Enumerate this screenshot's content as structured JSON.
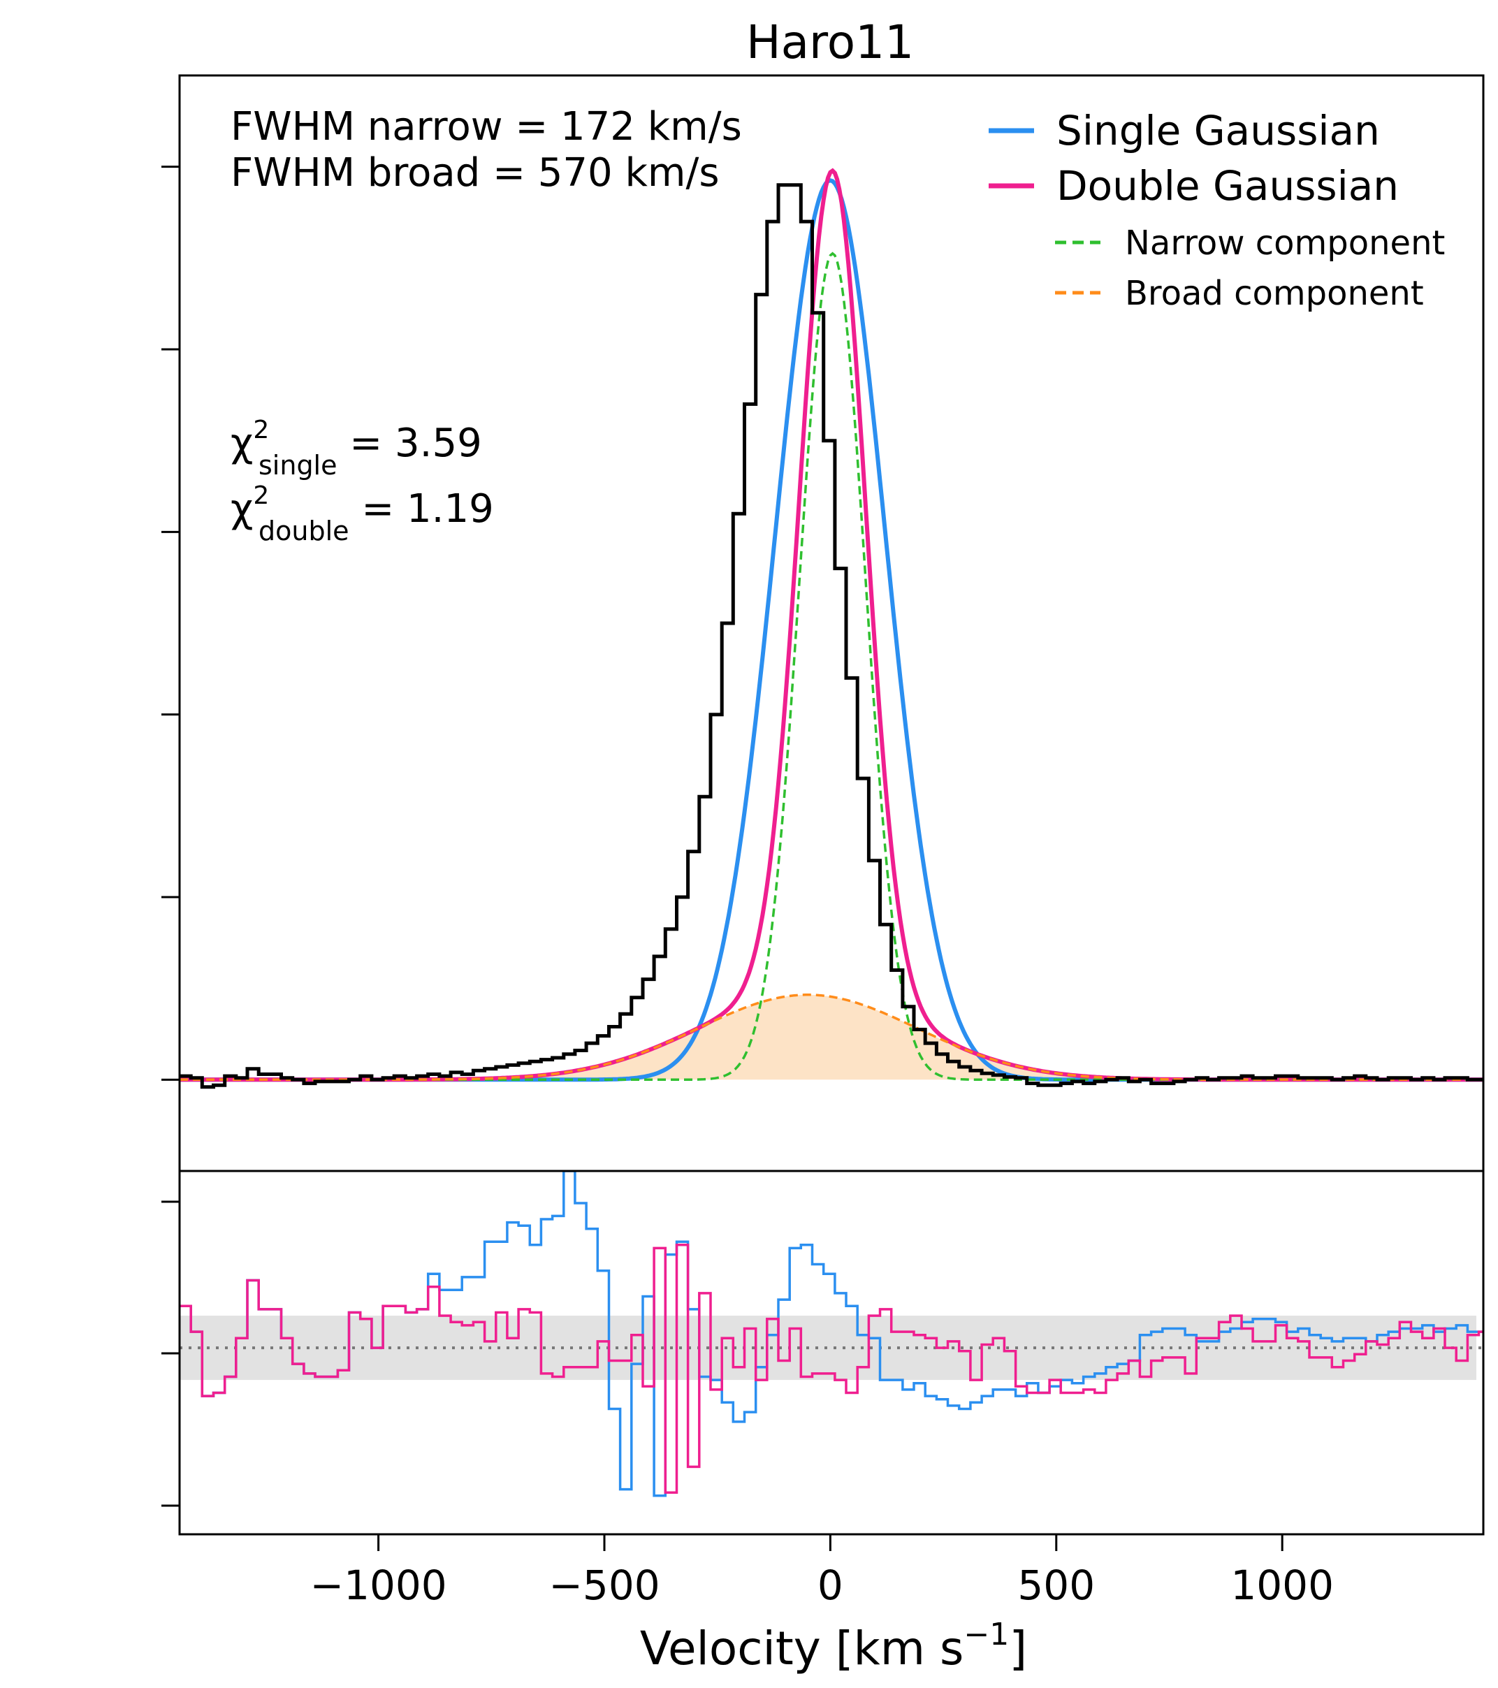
{
  "chart_data": {
    "type": "line",
    "title": "Haro11",
    "xlabel": "Velocity [km s",
    "xlabel_sup": "−1",
    "xlabel_close": "]",
    "xlim": [
      -1440,
      1445
    ],
    "xticks": [
      -1000,
      -500,
      0,
      500,
      1000
    ],
    "xtick_labels": [
      "−1000",
      "−500",
      "0",
      "500",
      "1000"
    ],
    "annotations": {
      "fwhm_narrow": "FWHM narrow = 172 km/s",
      "fwhm_broad": "FWHM broad = 570 km/s",
      "chi_symbol": "χ",
      "chi_sup": "2",
      "chi_single_sub": "single",
      "chi_single_value": " = 3.59",
      "chi_double_sub": "double",
      "chi_double_value": " = 1.19"
    },
    "legend": {
      "single": "Single Gaussian",
      "double": "Double Gaussian",
      "narrow": "Narrow component",
      "broad": "Broad component"
    },
    "colors": {
      "single": "#2b8ff0",
      "double": "#ef1f8f",
      "narrow": "#2fbf2f",
      "broad": "#ff8c1a",
      "broad_fill": "#fde3c6",
      "data": "#000000",
      "band": "#e2e2e2",
      "zero_line": "#777777"
    },
    "top_panel": {
      "ylim": [
        -0.1,
        1.1
      ],
      "data_step": {
        "x": [
          -1440,
          -1415,
          -1390,
          -1365,
          -1340,
          -1315,
          -1290,
          -1265,
          -1240,
          -1215,
          -1190,
          -1165,
          -1140,
          -1115,
          -1090,
          -1065,
          -1040,
          -1015,
          -990,
          -965,
          -940,
          -915,
          -890,
          -865,
          -840,
          -815,
          -790,
          -765,
          -740,
          -715,
          -690,
          -665,
          -640,
          -615,
          -590,
          -565,
          -540,
          -515,
          -490,
          -465,
          -440,
          -415,
          -390,
          -365,
          -340,
          -315,
          -290,
          -265,
          -240,
          -215,
          -190,
          -165,
          -140,
          -115,
          -90,
          -65,
          -40,
          -15,
          10,
          35,
          60,
          85,
          110,
          135,
          160,
          185,
          210,
          235,
          260,
          285,
          310,
          335,
          360,
          385,
          410,
          435,
          460,
          485,
          510,
          535,
          560,
          585,
          610,
          635,
          660,
          685,
          710,
          735,
          760,
          785,
          810,
          835,
          860,
          885,
          910,
          935,
          960,
          985,
          1010,
          1035,
          1060,
          1085,
          1110,
          1135,
          1160,
          1185,
          1210,
          1235,
          1260,
          1285,
          1310,
          1335,
          1360,
          1385,
          1410,
          1435
        ],
        "y": [
          0.004,
          0.002,
          -0.008,
          -0.006,
          0.004,
          0.002,
          0.012,
          0.006,
          0.006,
          0.002,
          0.0,
          -0.004,
          -0.002,
          -0.002,
          -0.002,
          0.0,
          0.004,
          0.0,
          0.002,
          0.004,
          0.002,
          0.004,
          0.006,
          0.004,
          0.008,
          0.006,
          0.01,
          0.012,
          0.014,
          0.016,
          0.018,
          0.02,
          0.022,
          0.024,
          0.028,
          0.032,
          0.04,
          0.048,
          0.058,
          0.072,
          0.09,
          0.11,
          0.135,
          0.165,
          0.2,
          0.25,
          0.31,
          0.4,
          0.5,
          0.62,
          0.74,
          0.86,
          0.94,
          0.98,
          0.98,
          0.94,
          0.84,
          0.7,
          0.56,
          0.44,
          0.33,
          0.24,
          0.17,
          0.12,
          0.08,
          0.055,
          0.04,
          0.028,
          0.02,
          0.014,
          0.01,
          0.007,
          0.005,
          0.003,
          0.002,
          -0.004,
          -0.006,
          -0.006,
          -0.004,
          -0.002,
          -0.004,
          -0.002,
          0.0,
          0.002,
          -0.002,
          0.0,
          -0.004,
          -0.004,
          -0.002,
          0.0,
          0.002,
          0.0,
          0.002,
          0.002,
          0.004,
          0.002,
          0.002,
          0.004,
          0.004,
          0.002,
          0.002,
          0.002,
          0.0,
          0.002,
          0.004,
          0.002,
          0.0,
          0.002,
          0.002,
          0.0,
          0.002,
          0.0,
          0.002,
          0.002,
          0.0,
          0.0
        ]
      },
      "single_gaussian": {
        "amplitude": 0.985,
        "mean": 0,
        "sigma": 122
      },
      "narrow_component": {
        "amplitude": 0.905,
        "mean": 5,
        "sigma": 73
      },
      "broad_component": {
        "amplitude": 0.093,
        "mean": -50,
        "sigma": 242
      }
    },
    "bottom_panel": {
      "ylim": [
        -5.8,
        5.5
      ],
      "band": [
        -1.0,
        1.0
      ],
      "step_x": [
        -1440,
        -1415,
        -1390,
        -1365,
        -1340,
        -1315,
        -1290,
        -1265,
        -1240,
        -1215,
        -1190,
        -1165,
        -1140,
        -1115,
        -1090,
        -1065,
        -1040,
        -1015,
        -990,
        -965,
        -940,
        -915,
        -890,
        -865,
        -840,
        -815,
        -790,
        -765,
        -740,
        -715,
        -690,
        -665,
        -640,
        -615,
        -590,
        -565,
        -540,
        -515,
        -490,
        -465,
        -440,
        -415,
        -390,
        -365,
        -340,
        -315,
        -290,
        -265,
        -240,
        -215,
        -190,
        -165,
        -140,
        -115,
        -90,
        -65,
        -40,
        -15,
        10,
        35,
        60,
        85,
        110,
        135,
        160,
        185,
        210,
        235,
        260,
        285,
        310,
        335,
        360,
        385,
        410,
        435,
        460,
        485,
        510,
        535,
        560,
        585,
        610,
        635,
        660,
        685,
        710,
        735,
        760,
        785,
        810,
        835,
        860,
        885,
        910,
        935,
        960,
        985,
        1010,
        1035,
        1060,
        1085,
        1110,
        1135,
        1160,
        1185,
        1210,
        1235,
        1260,
        1285,
        1310,
        1335,
        1360,
        1385,
        1410,
        1435
      ],
      "single_residuals": [
        1.3,
        0.5,
        -1.5,
        -1.4,
        -0.9,
        0.3,
        2.1,
        1.2,
        1.2,
        0.3,
        -0.5,
        -0.8,
        -0.9,
        -0.9,
        -0.7,
        1.1,
        0.9,
        0.0,
        1.3,
        1.3,
        1.1,
        1.2,
        2.3,
        1.8,
        1.8,
        2.2,
        2.2,
        3.3,
        3.3,
        3.9,
        3.8,
        3.2,
        4.0,
        4.1,
        5.5,
        4.5,
        3.7,
        2.4,
        -1.9,
        -4.4,
        -0.5,
        1.6,
        -4.6,
        2.9,
        3.3,
        1.2,
        -0.9,
        -1.0,
        -1.7,
        -2.3,
        -2.0,
        -0.6,
        0.4,
        1.5,
        3.1,
        3.2,
        2.6,
        2.3,
        1.7,
        1.3,
        0.4,
        0.3,
        -1.0,
        -1.0,
        -1.3,
        -1.1,
        -1.5,
        -1.6,
        -1.8,
        -1.9,
        -1.7,
        -1.5,
        -1.3,
        -1.3,
        -1.5,
        -1.1,
        -1.4,
        -1.2,
        -1.0,
        -1.1,
        -0.9,
        -0.8,
        -0.6,
        -0.5,
        -0.4,
        0.4,
        0.5,
        0.6,
        0.6,
        0.4,
        0.2,
        0.2,
        0.5,
        0.6,
        0.8,
        0.9,
        0.9,
        0.8,
        0.5,
        0.6,
        0.4,
        0.3,
        0.2,
        0.3,
        0.3,
        0.2,
        0.4,
        0.5,
        0.6,
        0.6,
        0.7,
        0.5,
        0.6,
        0.7,
        0.5,
        0.5
      ],
      "double_residuals": [
        1.3,
        0.5,
        -1.5,
        -1.4,
        -0.9,
        0.3,
        2.1,
        1.2,
        1.2,
        0.3,
        -0.5,
        -0.8,
        -0.9,
        -0.9,
        -0.7,
        1.1,
        0.9,
        0.0,
        1.3,
        1.3,
        1.1,
        1.2,
        1.9,
        1.0,
        0.8,
        0.7,
        0.8,
        0.2,
        1.1,
        0.3,
        1.2,
        1.1,
        -0.8,
        -0.9,
        -0.6,
        -0.6,
        -0.6,
        0.2,
        -0.4,
        -0.4,
        0.4,
        -1.2,
        3.1,
        -4.5,
        3.2,
        -3.7,
        1.7,
        -1.3,
        0.3,
        -0.6,
        0.6,
        -1.0,
        0.9,
        -0.4,
        0.6,
        -0.9,
        -0.8,
        -0.8,
        -1.0,
        -1.4,
        -0.6,
        1.0,
        1.2,
        0.5,
        0.5,
        0.4,
        0.3,
        0.0,
        0.2,
        -0.1,
        -1.0,
        0.1,
        0.3,
        -0.1,
        -1.2,
        -1.4,
        -1.4,
        -1.0,
        -1.4,
        -1.4,
        -1.3,
        -1.4,
        -1.0,
        -0.8,
        -0.4,
        -0.9,
        -0.4,
        -0.3,
        -0.3,
        -0.8,
        0.3,
        0.3,
        0.8,
        1.0,
        0.6,
        0.2,
        0.2,
        0.7,
        0.3,
        0.2,
        -0.3,
        -0.3,
        -0.6,
        -0.4,
        -0.2,
        0.2,
        0.1,
        0.3,
        0.8,
        0.5,
        0.3,
        0.6,
        0.0,
        -0.4,
        0.4,
        0.5
      ]
    }
  }
}
